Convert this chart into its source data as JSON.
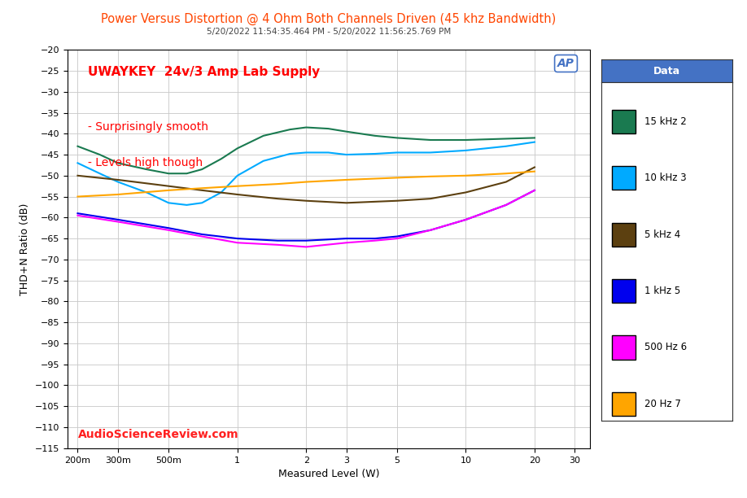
{
  "title": "Power Versus Distortion @ 4 Ohm Both Channels Driven (45 khz Bandwidth)",
  "subtitle": "5/20/2022 11:54:35.464 PM - 5/20/2022 11:56:25.769 PM",
  "xlabel": "Measured Level (W)",
  "ylabel": "THD+N Ratio (dB)",
  "annotation1": "UWAYKEY  24v/3 Amp Lab Supply",
  "annotation2": "- Surprisingly smooth",
  "annotation3": "- Levels high though",
  "watermark": "AudioScienceReview.com",
  "ap_logo": "AP",
  "title_color": "#FF4500",
  "annotation_color": "#FF0000",
  "watermark_color": "#FF2020",
  "legend_title": "Data",
  "legend_header_bg": "#4472C4",
  "bg_color": "#FFFFFF",
  "plot_bg_color": "#FFFFFF",
  "grid_color": "#C8C8C8",
  "xlim": [
    0.18,
    35
  ],
  "ylim": [
    -115,
    -20
  ],
  "yticks": [
    -115,
    -110,
    -105,
    -100,
    -95,
    -90,
    -85,
    -80,
    -75,
    -70,
    -65,
    -60,
    -55,
    -50,
    -45,
    -40,
    -35,
    -30,
    -25,
    -20
  ],
  "xtick_labels": [
    "200m",
    "300m",
    "500m",
    "1",
    "2",
    "3",
    "5",
    "10",
    "20",
    "30"
  ],
  "xtick_values": [
    0.2,
    0.3,
    0.5,
    1,
    2,
    3,
    5,
    10,
    20,
    30
  ],
  "series": [
    {
      "label": "15 kHz 2",
      "color": "#1a7a50",
      "x": [
        0.2,
        0.25,
        0.3,
        0.4,
        0.5,
        0.6,
        0.7,
        0.85,
        1.0,
        1.3,
        1.7,
        2.0,
        2.5,
        3.0,
        4.0,
        5.0,
        7.0,
        10.0,
        15.0,
        20.0
      ],
      "y": [
        -43.0,
        -45.0,
        -47.0,
        -48.5,
        -49.5,
        -49.5,
        -48.5,
        -46.0,
        -43.5,
        -40.5,
        -39.0,
        -38.5,
        -38.8,
        -39.5,
        -40.5,
        -41.0,
        -41.5,
        -41.5,
        -41.2,
        -41.0
      ]
    },
    {
      "label": "10 kHz 3",
      "color": "#00AAFF",
      "x": [
        0.2,
        0.25,
        0.3,
        0.4,
        0.5,
        0.6,
        0.7,
        0.85,
        1.0,
        1.3,
        1.7,
        2.0,
        2.5,
        3.0,
        4.0,
        5.0,
        7.0,
        10.0,
        15.0,
        20.0
      ],
      "y": [
        -47.0,
        -49.5,
        -51.5,
        -54.0,
        -56.5,
        -57.0,
        -56.5,
        -54.0,
        -50.0,
        -46.5,
        -44.8,
        -44.5,
        -44.5,
        -45.0,
        -44.8,
        -44.5,
        -44.5,
        -44.0,
        -43.0,
        -42.0
      ]
    },
    {
      "label": "5 kHz 4",
      "color": "#5C4010",
      "x": [
        0.2,
        0.3,
        0.5,
        0.7,
        1.0,
        1.5,
        2.0,
        3.0,
        5.0,
        7.0,
        10.0,
        15.0,
        20.0
      ],
      "y": [
        -50.0,
        -51.0,
        -52.5,
        -53.5,
        -54.5,
        -55.5,
        -56.0,
        -56.5,
        -56.0,
        -55.5,
        -54.0,
        -51.5,
        -48.0
      ]
    },
    {
      "label": "1 kHz 5",
      "color": "#0000EE",
      "x": [
        0.2,
        0.3,
        0.5,
        0.7,
        1.0,
        1.5,
        2.0,
        3.0,
        4.0,
        5.0,
        7.0,
        10.0,
        15.0,
        20.0
      ],
      "y": [
        -59.0,
        -60.5,
        -62.5,
        -64.0,
        -65.0,
        -65.5,
        -65.5,
        -65.0,
        -65.0,
        -64.5,
        -63.0,
        -60.5,
        -57.0,
        -53.5
      ]
    },
    {
      "label": "500 Hz 6",
      "color": "#FF00FF",
      "x": [
        0.2,
        0.3,
        0.5,
        0.7,
        1.0,
        1.5,
        2.0,
        3.0,
        4.0,
        5.0,
        7.0,
        10.0,
        15.0,
        20.0
      ],
      "y": [
        -59.5,
        -61.0,
        -63.0,
        -64.5,
        -66.0,
        -66.5,
        -67.0,
        -66.0,
        -65.5,
        -65.0,
        -63.0,
        -60.5,
        -57.0,
        -53.5
      ]
    },
    {
      "label": "20 Hz 7",
      "color": "#FFA500",
      "x": [
        0.2,
        0.3,
        0.5,
        0.7,
        1.0,
        1.5,
        2.0,
        3.0,
        5.0,
        7.0,
        10.0,
        15.0,
        20.0
      ],
      "y": [
        -55.0,
        -54.5,
        -53.5,
        -53.0,
        -52.5,
        -52.0,
        -51.5,
        -51.0,
        -50.5,
        -50.2,
        -50.0,
        -49.5,
        -49.0
      ]
    }
  ]
}
